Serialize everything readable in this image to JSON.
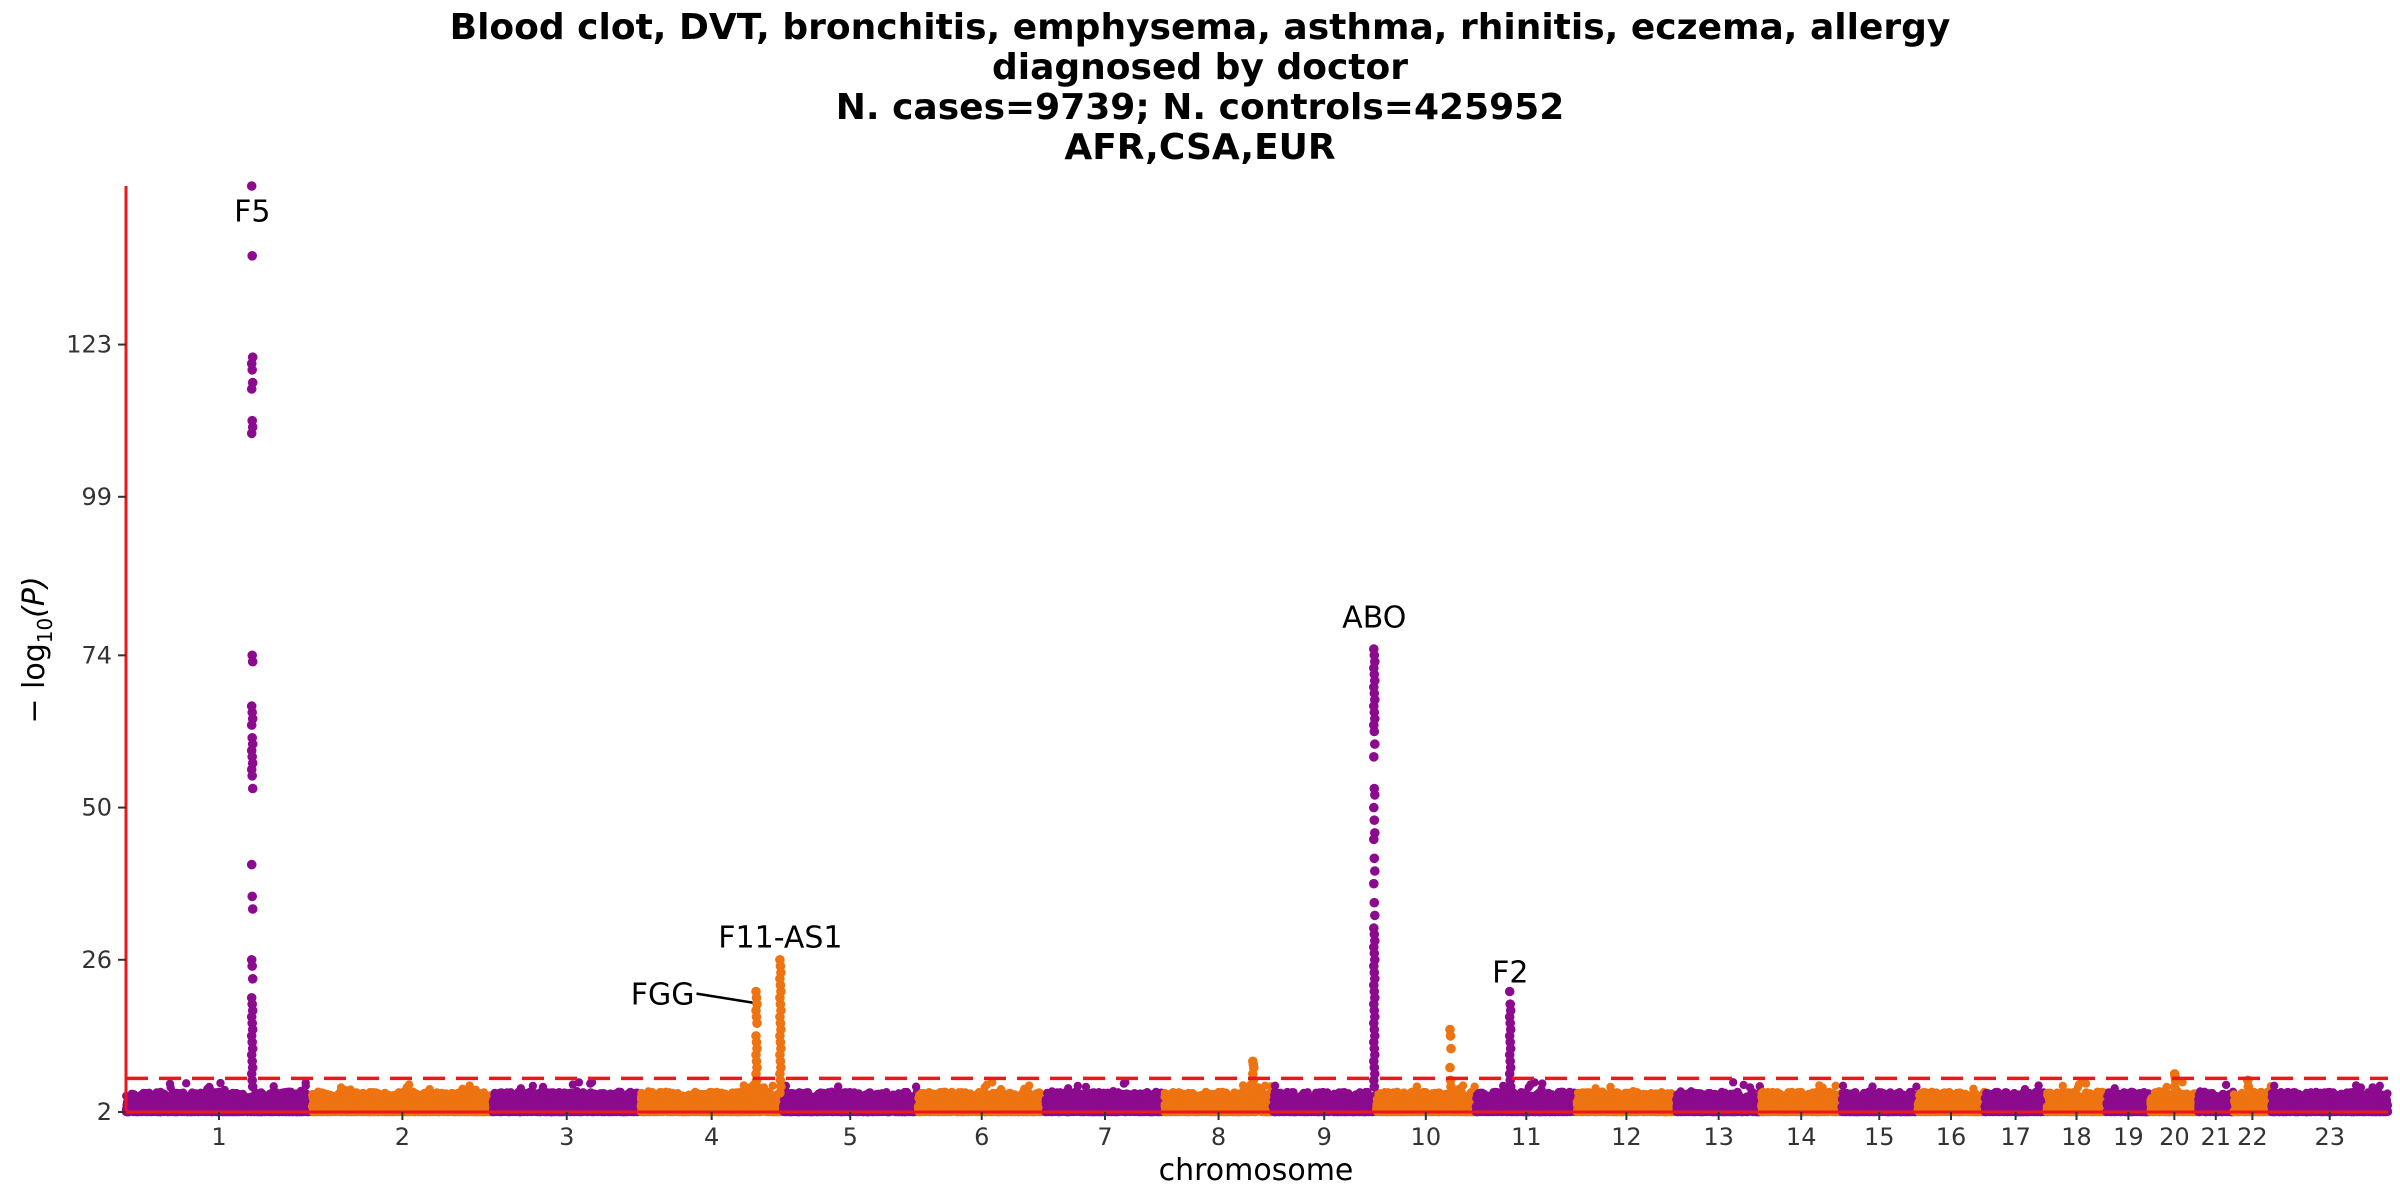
{
  "chart_data": {
    "type": "scatter",
    "subtype": "manhattan",
    "title_lines": [
      "Blood clot, DVT, bronchitis, emphysema, asthma, rhinitis, eczema, allergy",
      "diagnosed by doctor",
      "N. cases=9739; N. controls=425952",
      "AFR,CSA,EUR"
    ],
    "xlabel": "chromosome",
    "ylabel_main": "− log",
    "ylabel_sub": "10",
    "ylabel_var": "(P)",
    "ylim": [
      2,
      148
    ],
    "yticks": [
      "2",
      "26",
      "50",
      "74",
      "99",
      "123"
    ],
    "significance_threshold": 7.3,
    "threshold_color": "#e8191b",
    "axis_color": "#e8191b",
    "colors": {
      "odd": "#8b0a8e",
      "even": "#ee7311"
    },
    "chromosomes": [
      {
        "label": "1",
        "length": 249
      },
      {
        "label": "2",
        "length": 242
      },
      {
        "label": "3",
        "length": 198
      },
      {
        "label": "4",
        "length": 190
      },
      {
        "label": "5",
        "length": 181
      },
      {
        "label": "6",
        "length": 171
      },
      {
        "label": "7",
        "length": 159
      },
      {
        "label": "8",
        "length": 145
      },
      {
        "label": "9",
        "length": 138
      },
      {
        "label": "10",
        "length": 134
      },
      {
        "label": "11",
        "length": 135
      },
      {
        "label": "12",
        "length": 133
      },
      {
        "label": "13",
        "length": 114
      },
      {
        "label": "14",
        "length": 107
      },
      {
        "label": "15",
        "length": 102
      },
      {
        "label": "16",
        "length": 90
      },
      {
        "label": "17",
        "length": 83
      },
      {
        "label": "18",
        "length": 80
      },
      {
        "label": "19",
        "length": 59
      },
      {
        "label": "20",
        "length": 64
      },
      {
        "label": "21",
        "length": 47
      },
      {
        "label": "22",
        "length": 51
      },
      {
        "label": "23",
        "length": 156
      }
    ],
    "peaks": [
      {
        "chrom": "1",
        "pos": 169,
        "values": [
          148,
          137,
          121,
          120,
          119,
          117,
          116,
          111,
          110,
          109,
          74,
          73,
          66,
          65,
          64,
          63,
          61,
          60,
          59,
          58,
          57,
          56,
          55,
          53,
          41,
          36,
          34,
          26,
          25,
          23,
          20,
          19,
          18,
          17,
          16,
          15,
          14,
          13,
          12,
          11,
          10,
          9,
          8,
          7,
          6
        ]
      },
      {
        "chrom": "4",
        "pos": 155,
        "values": [
          21,
          20,
          19,
          18,
          17,
          16,
          14,
          13,
          12,
          11,
          10,
          9,
          8,
          7,
          6,
          5
        ]
      },
      {
        "chrom": "4",
        "pos": 187,
        "values": [
          26,
          25,
          24,
          23,
          22,
          21,
          20,
          19,
          18,
          17,
          16,
          15,
          14,
          13,
          12,
          11,
          10,
          9,
          8,
          7,
          6,
          5
        ]
      },
      {
        "chrom": "8",
        "pos": 119,
        "values": [
          10,
          9.5,
          9,
          8,
          7,
          6,
          5
        ]
      },
      {
        "chrom": "9",
        "pos": 136,
        "values": [
          75,
          74,
          73,
          72,
          71,
          70,
          69,
          68,
          67,
          66,
          65,
          64,
          63,
          62,
          60,
          58,
          53,
          52,
          50,
          48,
          46,
          45,
          42,
          40,
          38,
          35,
          33,
          31,
          30,
          29,
          28,
          27,
          26,
          25,
          24,
          23,
          22,
          21,
          20,
          19,
          18,
          17,
          16,
          15,
          14,
          13,
          12,
          11,
          10,
          9,
          8,
          7,
          6
        ]
      },
      {
        "chrom": "10",
        "pos": 100,
        "values": [
          15,
          14,
          12,
          9,
          7,
          6
        ]
      },
      {
        "chrom": "11",
        "pos": 46,
        "values": [
          21,
          19,
          18,
          17,
          16,
          15,
          14,
          13,
          12,
          11,
          10,
          9,
          8,
          7,
          6
        ]
      },
      {
        "chrom": "20",
        "pos": 33,
        "values": [
          8,
          7.5,
          7,
          6,
          5
        ]
      },
      {
        "chrom": "22",
        "pos": 20,
        "values": [
          7,
          6,
          5
        ]
      }
    ],
    "annotations": [
      {
        "label": "F5",
        "chrom": "1",
        "pos": 169,
        "y": 144,
        "anchor": "middle",
        "pointer": false
      },
      {
        "label": "FGG",
        "chrom": "4",
        "pos": 155,
        "y": 20.5,
        "anchor": "end",
        "pointer": true
      },
      {
        "label": "F11-AS1",
        "chrom": "4",
        "pos": 187,
        "y": 29.5,
        "anchor": "middle",
        "pointer": false
      },
      {
        "label": "ABO",
        "chrom": "9",
        "pos": 136,
        "y": 80,
        "anchor": "middle",
        "pointer": false
      },
      {
        "label": "F2",
        "chrom": "11",
        "pos": 46,
        "y": 24,
        "anchor": "middle",
        "pointer": false
      }
    ],
    "grid": false,
    "legend": "none"
  }
}
